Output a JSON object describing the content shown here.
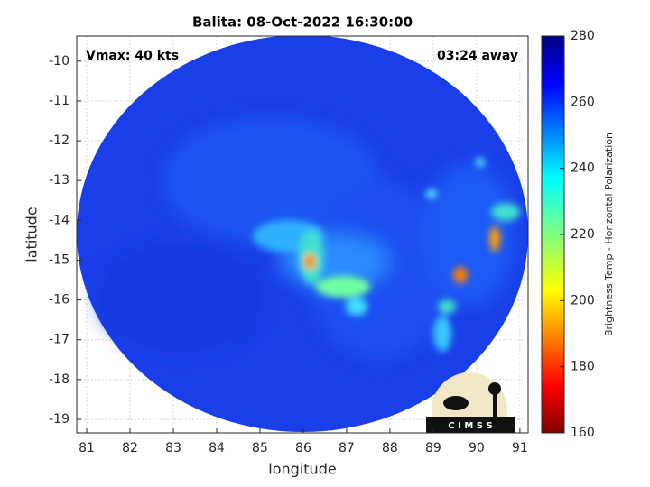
{
  "chart_data": {
    "type": "heatmap",
    "title": "Balita: 08-Oct-2022 16:30:00",
    "xlabel": "longitude",
    "ylabel": "latitude",
    "annotations": [
      "Vmax: 40 kts",
      "03:24 away"
    ],
    "logo_text": "C I M S S",
    "xlim": [
      80.77,
      91.19
    ],
    "xticks": [
      81,
      82,
      83,
      84,
      85,
      86,
      87,
      88,
      89,
      90,
      91
    ],
    "ylim": [
      -19.34,
      -9.37
    ],
    "yticks": [
      -19,
      -18,
      -17,
      -16,
      -15,
      -14,
      -13,
      -12,
      -11,
      -10
    ],
    "grid": true,
    "colorbar": {
      "label": "Brightness Temp - Horizontal Polarization",
      "clim": [
        160,
        280
      ],
      "ticks": [
        160,
        180,
        200,
        220,
        240,
        260,
        280
      ],
      "colormap": "jet"
    }
  }
}
